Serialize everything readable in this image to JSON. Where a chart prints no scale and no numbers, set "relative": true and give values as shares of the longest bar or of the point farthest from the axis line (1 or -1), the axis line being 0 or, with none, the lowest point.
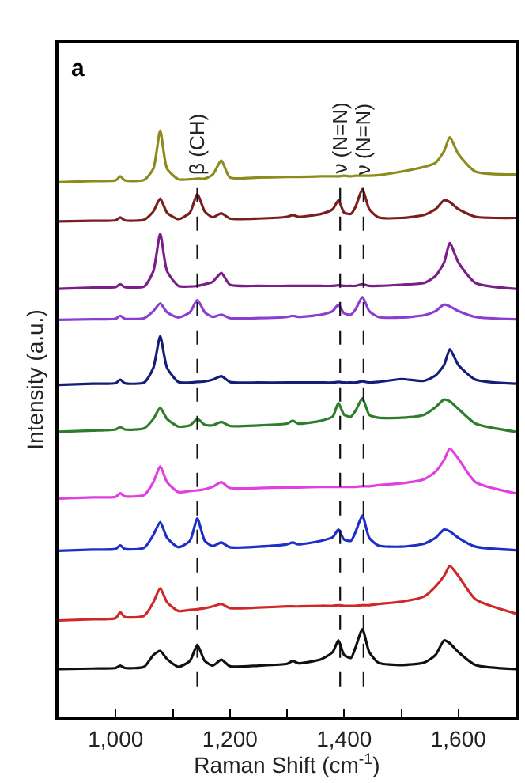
{
  "chart_data": {
    "type": "line",
    "relative": true,
    "xlabel": "Raman Shift (cm$^{-1}$)",
    "ylabel": "Intensity (a.u.)",
    "annotations": [
      "a"
    ],
    "x": [
      900,
      960,
      1000,
      1008,
      1016,
      1050,
      1066,
      1078,
      1090,
      1110,
      1130,
      1143,
      1156,
      1170,
      1185,
      1200,
      1250,
      1300,
      1310,
      1320,
      1360,
      1380,
      1390,
      1400,
      1412,
      1420,
      1432,
      1444,
      1460,
      1500,
      1540,
      1560,
      1575,
      1585,
      1600,
      1630,
      1700
    ],
    "xlim": [
      900,
      1700
    ],
    "xticks": [
      {
        "value": 900,
        "label": null
      },
      {
        "value": 1000,
        "label": "1,000"
      },
      {
        "value": 1100,
        "label": null
      },
      {
        "value": 1200,
        "label": "1,200"
      },
      {
        "value": 1300,
        "label": null
      },
      {
        "value": 1400,
        "label": "1,400"
      },
      {
        "value": 1500,
        "label": null
      },
      {
        "value": 1600,
        "label": "1,600"
      },
      {
        "value": 1700,
        "label": null
      }
    ],
    "ref_lines": [
      {
        "axis": "x",
        "value": 1143,
        "label": "β (CH)",
        "color": "#111111",
        "line_style": "dashed"
      },
      {
        "axis": "x",
        "value": 1393,
        "label": "ν (N=N)",
        "color": "#111111",
        "line_style": "dashed"
      },
      {
        "axis": "x",
        "value": 1434,
        "label": "ν (N=N)",
        "color": "#111111",
        "line_style": "dashed"
      }
    ],
    "series": [
      {
        "color": "#8c8c1e",
        "values": [
          0.912,
          0.914,
          0.915,
          0.922,
          0.915,
          0.916,
          0.935,
          1.0,
          0.935,
          0.917,
          0.917,
          0.918,
          0.918,
          0.925,
          0.949,
          0.92,
          0.92,
          0.921,
          0.921,
          0.921,
          0.922,
          0.922,
          0.922,
          0.923,
          0.922,
          0.923,
          0.923,
          0.923,
          0.924,
          0.93,
          0.938,
          0.945,
          0.965,
          0.989,
          0.96,
          0.93,
          0.925
        ]
      },
      {
        "color": "#7a1f1f",
        "values": [
          0.845,
          0.846,
          0.847,
          0.852,
          0.847,
          0.848,
          0.862,
          0.884,
          0.86,
          0.849,
          0.86,
          0.892,
          0.862,
          0.852,
          0.859,
          0.85,
          0.85,
          0.853,
          0.856,
          0.853,
          0.858,
          0.866,
          0.881,
          0.86,
          0.858,
          0.87,
          0.9,
          0.866,
          0.852,
          0.851,
          0.856,
          0.866,
          0.881,
          0.878,
          0.866,
          0.853,
          0.851
        ]
      },
      {
        "color": "#7b1e8a",
        "values": [
          0.73,
          0.732,
          0.733,
          0.738,
          0.733,
          0.734,
          0.76,
          0.824,
          0.76,
          0.735,
          0.734,
          0.735,
          0.738,
          0.742,
          0.757,
          0.737,
          0.735,
          0.735,
          0.735,
          0.735,
          0.735,
          0.735,
          0.736,
          0.735,
          0.735,
          0.735,
          0.738,
          0.735,
          0.735,
          0.737,
          0.74,
          0.752,
          0.775,
          0.808,
          0.775,
          0.74,
          0.73
        ]
      },
      {
        "color": "#8a3fd0",
        "values": [
          0.677,
          0.678,
          0.679,
          0.684,
          0.679,
          0.68,
          0.692,
          0.705,
          0.69,
          0.681,
          0.69,
          0.711,
          0.69,
          0.682,
          0.686,
          0.68,
          0.68,
          0.682,
          0.684,
          0.682,
          0.686,
          0.692,
          0.703,
          0.688,
          0.686,
          0.695,
          0.716,
          0.692,
          0.682,
          0.681,
          0.685,
          0.692,
          0.703,
          0.7,
          0.692,
          0.682,
          0.678
        ]
      },
      {
        "color": "#141e78",
        "values": [
          0.566,
          0.568,
          0.569,
          0.575,
          0.569,
          0.57,
          0.595,
          0.649,
          0.595,
          0.571,
          0.57,
          0.571,
          0.572,
          0.575,
          0.581,
          0.571,
          0.57,
          0.57,
          0.57,
          0.57,
          0.57,
          0.57,
          0.571,
          0.57,
          0.57,
          0.57,
          0.572,
          0.57,
          0.571,
          0.576,
          0.573,
          0.582,
          0.6,
          0.627,
          0.6,
          0.575,
          0.568
        ]
      },
      {
        "color": "#2e7d2e",
        "values": [
          0.486,
          0.488,
          0.49,
          0.494,
          0.49,
          0.492,
          0.508,
          0.527,
          0.508,
          0.495,
          0.497,
          0.508,
          0.498,
          0.497,
          0.503,
          0.496,
          0.497,
          0.5,
          0.505,
          0.5,
          0.505,
          0.512,
          0.535,
          0.515,
          0.512,
          0.522,
          0.543,
          0.515,
          0.51,
          0.51,
          0.515,
          0.528,
          0.541,
          0.538,
          0.525,
          0.5,
          0.486
        ]
      },
      {
        "color": "#e040e0",
        "values": [
          0.372,
          0.374,
          0.375,
          0.381,
          0.376,
          0.378,
          0.4,
          0.427,
          0.4,
          0.383,
          0.385,
          0.386,
          0.388,
          0.392,
          0.4,
          0.39,
          0.39,
          0.391,
          0.391,
          0.391,
          0.392,
          0.392,
          0.392,
          0.392,
          0.392,
          0.392,
          0.393,
          0.393,
          0.395,
          0.398,
          0.405,
          0.418,
          0.438,
          0.457,
          0.44,
          0.4,
          0.381
        ]
      },
      {
        "color": "#1e2ec8",
        "values": [
          0.283,
          0.285,
          0.286,
          0.292,
          0.286,
          0.288,
          0.31,
          0.332,
          0.305,
          0.289,
          0.3,
          0.338,
          0.3,
          0.291,
          0.297,
          0.289,
          0.29,
          0.294,
          0.297,
          0.294,
          0.3,
          0.306,
          0.319,
          0.302,
          0.3,
          0.315,
          0.343,
          0.305,
          0.292,
          0.29,
          0.295,
          0.305,
          0.319,
          0.316,
          0.305,
          0.29,
          0.284
        ]
      },
      {
        "color": "#d02828",
        "values": [
          0.164,
          0.166,
          0.168,
          0.178,
          0.17,
          0.172,
          0.195,
          0.219,
          0.195,
          0.18,
          0.182,
          0.183,
          0.185,
          0.188,
          0.192,
          0.185,
          0.186,
          0.188,
          0.188,
          0.188,
          0.189,
          0.189,
          0.19,
          0.189,
          0.189,
          0.189,
          0.19,
          0.19,
          0.192,
          0.196,
          0.205,
          0.222,
          0.24,
          0.257,
          0.24,
          0.2,
          0.176
        ]
      },
      {
        "color": "#111111",
        "values": [
          0.081,
          0.082,
          0.083,
          0.087,
          0.083,
          0.085,
          0.105,
          0.112,
          0.098,
          0.085,
          0.095,
          0.122,
          0.095,
          0.087,
          0.097,
          0.086,
          0.087,
          0.09,
          0.095,
          0.091,
          0.098,
          0.11,
          0.13,
          0.105,
          0.1,
          0.118,
          0.149,
          0.11,
          0.092,
          0.088,
          0.092,
          0.105,
          0.13,
          0.125,
          0.11,
          0.088,
          0.081
        ]
      }
    ]
  }
}
